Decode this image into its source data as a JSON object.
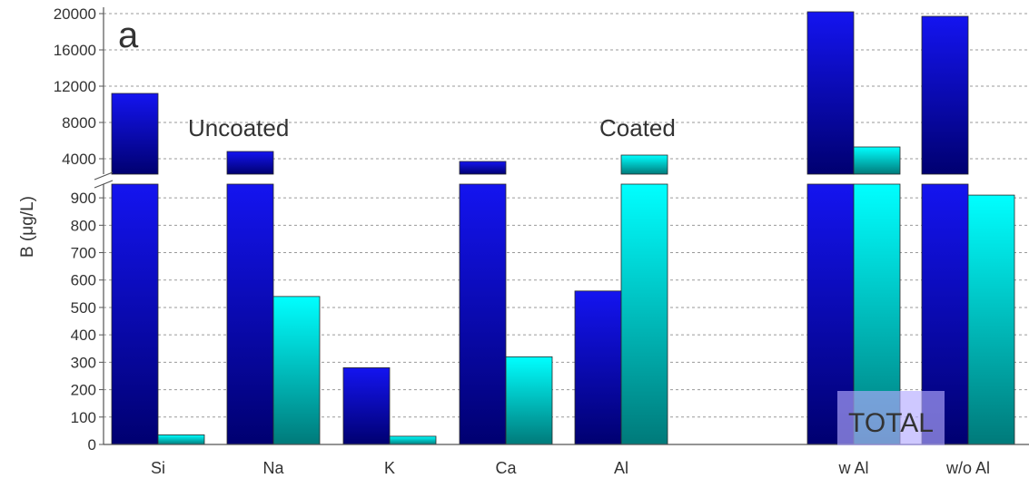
{
  "chart_data": {
    "type": "bar",
    "panel_label": "a",
    "ylabel": "B (μg/L)",
    "categories": [
      "Si",
      "Na",
      "K",
      "Ca",
      "Al",
      "w Al",
      "w/o Al"
    ],
    "series": [
      {
        "name": "Uncoated",
        "color_top": "#1414f0",
        "color_bottom": "#000070",
        "values": [
          11200,
          4800,
          280,
          3700,
          560,
          20200,
          19700
        ]
      },
      {
        "name": "Coated",
        "color_top": "#00ffff",
        "color_bottom": "#007a7a",
        "values": [
          35,
          540,
          30,
          320,
          4400,
          5300,
          910
        ]
      }
    ],
    "y_axis": {
      "broken": true,
      "lower_range": [
        0,
        950
      ],
      "lower_ticks": [
        0,
        100,
        200,
        300,
        400,
        500,
        600,
        700,
        800,
        900
      ],
      "upper_range": [
        2300,
        20500
      ],
      "upper_ticks": [
        4000,
        8000,
        12000,
        16000,
        20000
      ]
    },
    "grid": "dashed-horizontal",
    "annotations": [
      "Uncoated",
      "Coated",
      "TOTAL"
    ]
  }
}
